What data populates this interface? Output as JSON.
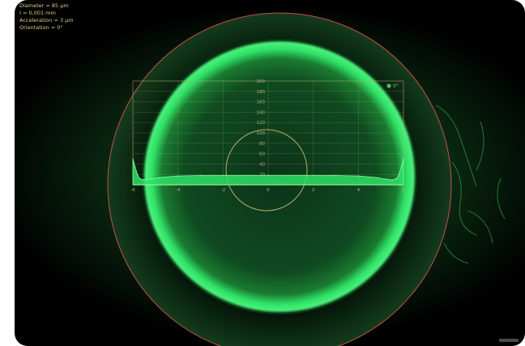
{
  "readouts": [
    "Diameter = 85 µm",
    "I = 0,001 mm",
    "Acceleration = 3 µm",
    "Orientation = 0°"
  ],
  "legend": {
    "label": "0°",
    "swatch_color": "#4fbf5f"
  },
  "colors": {
    "fluorescein": "#2fe066",
    "plot_line": "#b7ad6c",
    "limbus_circle": "#c0504d"
  },
  "chart_data": {
    "type": "line",
    "title": "",
    "xlabel": "",
    "ylabel": "",
    "x_ticks": [
      "-6",
      "-4",
      "-2",
      "0",
      "2",
      "4",
      "6"
    ],
    "y_ticks": [
      "200",
      "180",
      "160",
      "140",
      "120",
      "100",
      "80",
      "60",
      "40",
      "20"
    ],
    "xlim": [
      -6,
      6
    ],
    "ylim": [
      0,
      200
    ],
    "legend_position": "top-right",
    "grid": true,
    "series": [
      {
        "name": "0°",
        "x": [
          -6.0,
          -5.9,
          -5.8,
          -5.7,
          -5.5,
          -5.2,
          -4.8,
          -4,
          -3,
          -2,
          -1,
          0,
          1,
          2,
          3,
          4,
          4.8,
          5.2,
          5.5,
          5.7,
          5.8,
          5.9,
          6.0
        ],
        "y": [
          50,
          34,
          20,
          12,
          9,
          11,
          14,
          17,
          18,
          18,
          18,
          18,
          18,
          18,
          18,
          17,
          14,
          11,
          9,
          12,
          20,
          34,
          50
        ]
      }
    ]
  }
}
